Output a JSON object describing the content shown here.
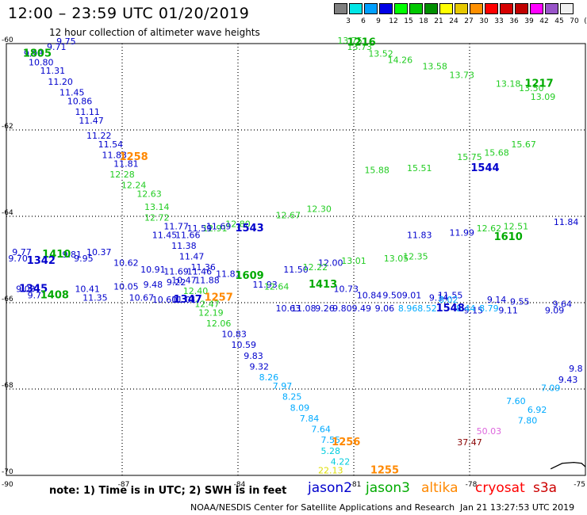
{
  "header": {
    "title": "12:00 – 23:59 UTC 01/20/2019",
    "subtitle": "12 hour collection of altimeter wave heights"
  },
  "colorbar": {
    "colors": [
      "#808080",
      "#00e6e6",
      "#00a0ff",
      "#0000e6",
      "#00ff00",
      "#00c800",
      "#009000",
      "#ffff00",
      "#e6c800",
      "#ff9000",
      "#ff0000",
      "#d60000",
      "#c00000",
      "#ff00ff",
      "#9955c9",
      "#f0f0f0"
    ],
    "labels": [
      "3",
      "6",
      "9",
      "12",
      "15",
      "18",
      "21",
      "24",
      "27",
      "30",
      "33",
      "36",
      "39",
      "42",
      "45",
      "70",
      "(ft)"
    ]
  },
  "axes": {
    "lat_labels": [
      "-60",
      "-62",
      "-64",
      "-66",
      "-68",
      "-70"
    ],
    "lon_labels": [
      "-90",
      "-87",
      "-84",
      "-81",
      "-78",
      "-75"
    ]
  },
  "tracks": [
    {
      "id": "t1",
      "color": "#0000cc",
      "points": [
        [
          "9.75",
          -88.45,
          -60.02
        ],
        [
          "9.71",
          -88.7,
          -60.15
        ],
        [
          "9.98",
          -89.3,
          -60.3
        ],
        [
          "10.80",
          -89.1,
          -60.5
        ],
        [
          "11.31",
          -88.8,
          -60.7
        ],
        [
          "11.20",
          -88.6,
          -60.95
        ],
        [
          "11.45",
          -88.3,
          -61.2
        ],
        [
          "10.86",
          -88.1,
          -61.4
        ],
        [
          "11.11",
          -87.9,
          -61.65
        ],
        [
          "11.47",
          -87.8,
          -61.85
        ],
        [
          "11.22",
          -87.6,
          -62.2
        ],
        [
          "11.54",
          -87.3,
          -62.4
        ],
        [
          "11.83",
          -87.2,
          -62.65
        ],
        [
          "11.81",
          -86.9,
          -62.85
        ]
      ]
    },
    {
      "id": "t2",
      "color": "#22cc22",
      "points": [
        [
          "12.28",
          -87.0,
          -63.1
        ],
        [
          "12.24",
          -86.7,
          -63.35
        ],
        [
          "12.63",
          -86.3,
          -63.55
        ],
        [
          "13.14",
          -86.1,
          -63.85
        ],
        [
          "12.72",
          -86.1,
          -64.1
        ]
      ]
    },
    {
      "id": "t3",
      "color": "#0000cc",
      "points": [
        [
          "11.77",
          -85.6,
          -64.3
        ],
        [
          "11.45",
          -85.9,
          -64.5
        ],
        [
          "11.66",
          -85.3,
          -64.5
        ],
        [
          "11.38",
          -85.4,
          -64.75
        ],
        [
          "11.47",
          -85.2,
          -65.0
        ],
        [
          "11.36",
          -84.9,
          -65.25
        ],
        [
          "11.88",
          -84.8,
          -65.55
        ]
      ]
    },
    {
      "id": "t4",
      "color": "#22cc22",
      "points": [
        [
          "12.40",
          -85.1,
          -65.8
        ],
        [
          "12.47",
          -84.8,
          -66.1
        ],
        [
          "12.19",
          -84.7,
          -66.3
        ],
        [
          "12.06",
          -84.5,
          -66.55
        ]
      ]
    },
    {
      "id": "t5",
      "color": "#0000cc",
      "points": [
        [
          "10.83",
          -84.1,
          -66.8
        ],
        [
          "10.59",
          -83.85,
          -67.05
        ],
        [
          "9.83",
          -83.6,
          -67.3
        ],
        [
          "9.32",
          -83.45,
          -67.55
        ]
      ]
    },
    {
      "id": "t6",
      "color": "#00aaff",
      "points": [
        [
          "8.26",
          -83.2,
          -67.8
        ],
        [
          "7.97",
          -82.85,
          -68.0
        ],
        [
          "8.25",
          -82.6,
          -68.25
        ],
        [
          "8.09",
          -82.4,
          -68.5
        ],
        [
          "7.84",
          -82.15,
          -68.75
        ],
        [
          "7.64",
          -81.85,
          -69.0
        ],
        [
          "7.55",
          -81.6,
          -69.25
        ]
      ]
    },
    {
      "id": "t7",
      "color": "#00ccdd",
      "points": [
        [
          "5.28",
          -81.6,
          -69.5
        ],
        [
          "4.22",
          -81.35,
          -69.75
        ]
      ]
    },
    {
      "id": "t8",
      "color": "#dddd00",
      "points": [
        [
          "22.13",
          -81.6,
          -69.95
        ]
      ]
    },
    {
      "id": "t9",
      "color": "#22cc22",
      "points": [
        [
          "13.75",
          -81.1,
          -60.0
        ],
        [
          "13.73",
          -80.85,
          -60.15
        ],
        [
          "13.52",
          -80.3,
          -60.3
        ],
        [
          "14.26",
          -79.8,
          -60.45
        ],
        [
          "13.58",
          -78.9,
          -60.6
        ],
        [
          "13.73",
          -78.2,
          -60.8
        ],
        [
          "13.18",
          -77.0,
          -61.0
        ],
        [
          "13.50",
          -76.4,
          -61.1
        ],
        [
          "13.09",
          -76.1,
          -61.3
        ]
      ]
    },
    {
      "id": "t10",
      "color": "#22cc22",
      "points": [
        [
          "15.88",
          -80.4,
          -63.0
        ],
        [
          "15.51",
          -79.3,
          -62.95
        ],
        [
          "15.75",
          -78.0,
          -62.7
        ],
        [
          "15.68",
          -77.3,
          -62.6
        ],
        [
          "15.67",
          -76.6,
          -62.4
        ]
      ]
    },
    {
      "id": "t11",
      "color": "#22cc22",
      "points": [
        [
          "12.91",
          -84.6,
          -64.35
        ],
        [
          "12.80",
          -84.0,
          -64.25
        ],
        [
          "12.67",
          -82.7,
          -64.05
        ],
        [
          "12.30",
          -81.9,
          -63.9
        ]
      ]
    },
    {
      "id": "t12",
      "color": "#0000cc",
      "points": [
        [
          "11.69",
          -84.5,
          -64.3
        ],
        [
          "11.59",
          -85.0,
          -64.35
        ],
        [
          "11.83",
          -79.3,
          -64.5
        ],
        [
          "11.99",
          -78.2,
          -64.45
        ],
        [
          "11.84",
          -75.5,
          -64.2
        ]
      ]
    },
    {
      "id": "t13",
      "color": "#22cc22",
      "points": [
        [
          "12.62",
          -77.5,
          -64.35
        ],
        [
          "12.51",
          -76.8,
          -64.3
        ]
      ]
    },
    {
      "id": "t14",
      "color": "#0000cc",
      "points": [
        [
          "9.77",
          -89.6,
          -64.9
        ],
        [
          "9.70",
          -89.7,
          -65.05
        ],
        [
          "9.81",
          -88.3,
          -64.95
        ],
        [
          "10.37",
          -87.6,
          -64.9
        ],
        [
          "9.95",
          -88.0,
          -65.05
        ],
        [
          "10.62",
          -86.9,
          -65.15
        ],
        [
          "10.91",
          -86.2,
          -65.3
        ],
        [
          "11.69",
          -85.6,
          -65.35
        ],
        [
          "11.46",
          -85.0,
          -65.35
        ],
        [
          "11.81",
          -84.25,
          -65.4
        ],
        [
          "11.50",
          -82.5,
          -65.3
        ],
        [
          "12.00",
          -81.6,
          -65.15
        ],
        [
          "11.93",
          -83.3,
          -65.65
        ]
      ]
    },
    {
      "id": "t15",
      "color": "#22cc22",
      "points": [
        [
          "12.22",
          -82.0,
          -65.25
        ],
        [
          "13.01",
          -81.0,
          -65.1
        ],
        [
          "13.05",
          -79.9,
          -65.05
        ],
        [
          "12.35",
          -79.4,
          -65.0
        ],
        [
          "12.64",
          -83.0,
          -65.7
        ]
      ]
    },
    {
      "id": "t16",
      "color": "#0000cc",
      "points": [
        [
          "9.03",
          -89.5,
          -65.75
        ],
        [
          "9.71",
          -89.2,
          -65.9
        ],
        [
          "10.41",
          -87.9,
          -65.75
        ],
        [
          "11.35",
          -87.7,
          -65.95
        ],
        [
          "10.05",
          -86.9,
          -65.7
        ],
        [
          "10.67",
          -86.5,
          -65.95
        ],
        [
          "9.48",
          -86.2,
          -65.65
        ],
        [
          "10.60",
          -85.9,
          -66.0
        ],
        [
          "9.22",
          -85.6,
          -65.6
        ],
        [
          "10.47",
          -85.4,
          -65.55
        ],
        [
          "11.01",
          -85.4,
          -66.0
        ],
        [
          "10.73",
          -81.2,
          -65.75
        ],
        [
          "10.84",
          -80.6,
          -65.9
        ],
        [
          "9.50",
          -80.0,
          -65.9
        ],
        [
          "9.01",
          -79.5,
          -65.9
        ],
        [
          "9.14",
          -78.8,
          -65.95
        ],
        [
          "11.55",
          -78.5,
          -65.9
        ],
        [
          "9.14",
          -77.3,
          -66.0
        ],
        [
          "9.55",
          -76.7,
          -66.05
        ],
        [
          "9.64",
          -75.6,
          -66.1
        ]
      ]
    },
    {
      "id": "t17",
      "color": "#0000cc",
      "points": [
        [
          "10.63",
          -82.7,
          -66.2
        ],
        [
          "11.08",
          -82.3,
          -66.2
        ],
        [
          "9.26",
          -81.75,
          -66.2
        ],
        [
          "9.80",
          -81.3,
          -66.2
        ],
        [
          "9.49",
          -80.8,
          -66.2
        ],
        [
          "9.06",
          -80.2,
          -66.2
        ],
        [
          "9.15",
          -77.9,
          -66.25
        ],
        [
          "9.11",
          -77.0,
          -66.25
        ],
        [
          "9.09",
          -75.8,
          -66.25
        ]
      ]
    },
    {
      "id": "t18",
      "color": "#00aaff",
      "points": [
        [
          "8.96",
          -79.6,
          -66.2
        ],
        [
          "8.52",
          -79.1,
          -66.2
        ],
        [
          "8.02",
          -78.55,
          -66.0
        ],
        [
          "8.44",
          -78.1,
          -66.2
        ],
        [
          "8.79",
          -77.5,
          -66.2
        ]
      ]
    },
    {
      "id": "t19",
      "color": "#0000cc",
      "points": [
        [
          "9.43",
          -75.45,
          -67.85
        ],
        [
          "9.8",
          -75.25,
          -67.6
        ]
      ]
    },
    {
      "id": "t20",
      "color": "#00aaff",
      "points": [
        [
          "7.09",
          -75.9,
          -68.05
        ],
        [
          "6.92",
          -76.25,
          -68.55
        ],
        [
          "7.80",
          -76.5,
          -68.8
        ],
        [
          "7.60",
          -76.8,
          -68.35
        ]
      ]
    },
    {
      "id": "t21",
      "color": "#dd66dd",
      "points": [
        [
          "50.03",
          -77.5,
          -69.05
        ]
      ]
    },
    {
      "id": "t22",
      "color": "#880000",
      "points": [
        [
          "37.47",
          -78.0,
          -69.3
        ]
      ]
    }
  ],
  "passes": [
    {
      "label": "1805",
      "color": "#00aa00",
      "lon": -89.2,
      "lat": -60.3
    },
    {
      "label": "1258",
      "color": "#ff8800",
      "lon": -86.7,
      "lat": -62.7
    },
    {
      "label": "1216",
      "color": "#00aa00",
      "lon": -80.8,
      "lat": -60.05
    },
    {
      "label": "1217",
      "color": "#00aa00",
      "lon": -76.2,
      "lat": -61.0
    },
    {
      "label": "1544",
      "color": "#0000cc",
      "lon": -77.6,
      "lat": -62.95
    },
    {
      "label": "1543",
      "color": "#0000cc",
      "lon": -83.7,
      "lat": -64.35
    },
    {
      "label": "1610",
      "color": "#00aa00",
      "lon": -77.0,
      "lat": -64.55
    },
    {
      "label": "1609",
      "color": "#00aa00",
      "lon": -83.7,
      "lat": -65.45
    },
    {
      "label": "1410",
      "color": "#00aa00",
      "lon": -88.7,
      "lat": -64.95
    },
    {
      "label": "1342",
      "color": "#0000cc",
      "lon": -89.1,
      "lat": -65.1
    },
    {
      "label": "1413",
      "color": "#00aa00",
      "lon": -81.8,
      "lat": -65.65
    },
    {
      "label": "1345",
      "color": "#0000cc",
      "lon": -89.3,
      "lat": -65.75
    },
    {
      "label": "1408",
      "color": "#00aa00",
      "lon": -88.75,
      "lat": -65.9
    },
    {
      "label": "1347",
      "color": "#0000cc",
      "lon": -85.3,
      "lat": -66.0
    },
    {
      "label": "1257",
      "color": "#ff8800",
      "lon": -84.5,
      "lat": -65.95
    },
    {
      "label": "1548",
      "color": "#0000cc",
      "lon": -78.5,
      "lat": -66.2
    },
    {
      "label": "1256",
      "color": "#ff8800",
      "lon": -81.2,
      "lat": -69.3
    },
    {
      "label": "1255",
      "color": "#ff8800",
      "lon": -80.2,
      "lat": -69.95
    }
  ],
  "footer": {
    "note": "note: 1) Time is in UTC; 2) SWH is in feet",
    "satellites": [
      {
        "name": "jason2",
        "color": "#0000cc"
      },
      {
        "name": "jason3",
        "color": "#00aa00"
      },
      {
        "name": "altika",
        "color": "#ff8800"
      },
      {
        "name": "cryosat",
        "color": "#ff0000"
      },
      {
        "name": "s3a",
        "color": "#cc0000"
      }
    ],
    "credit": "NOAA/NESDIS Center for Satellite Applications and Research",
    "timestamp": "Jan 21 13:27:53 UTC 2019"
  }
}
